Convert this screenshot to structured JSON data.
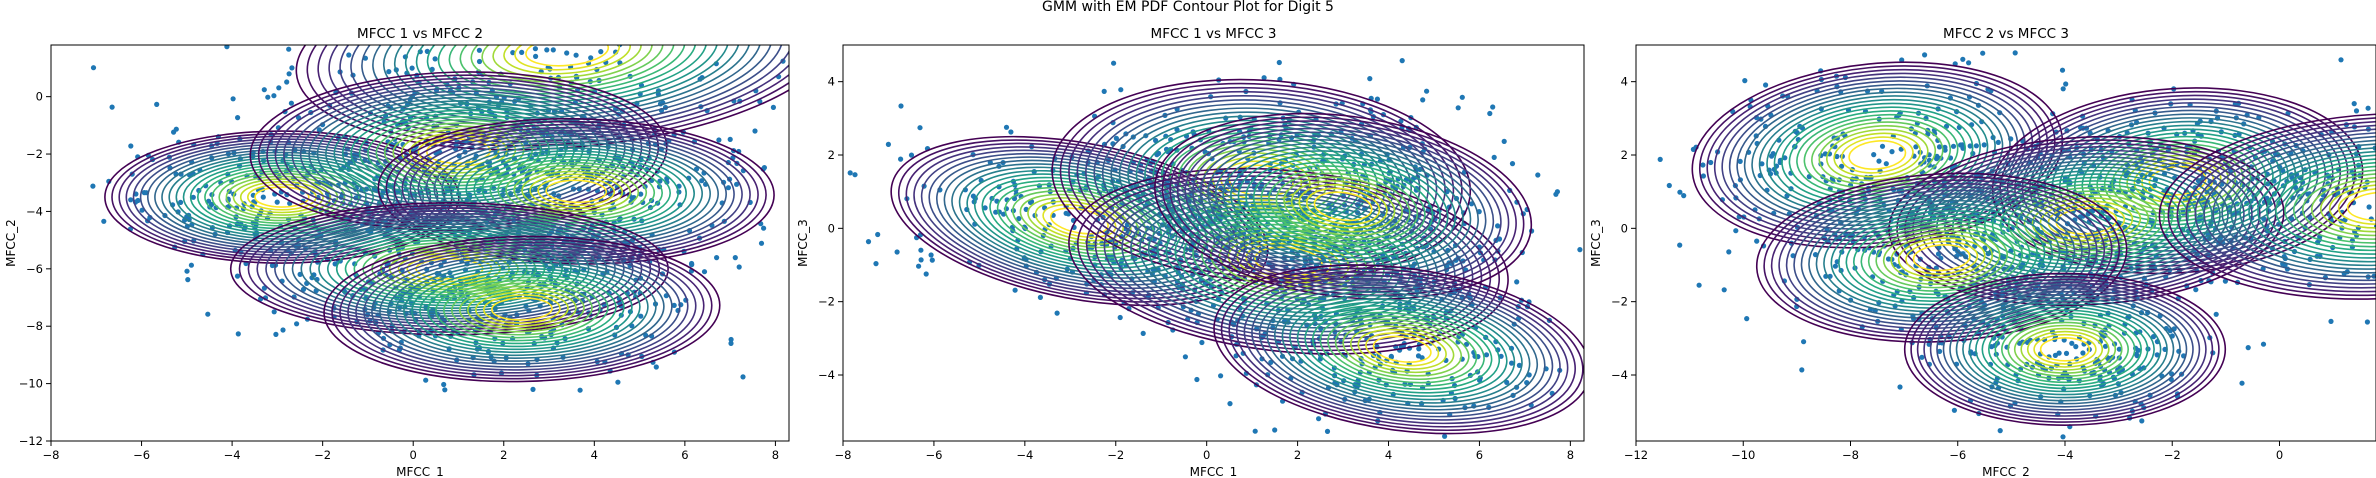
{
  "figure": {
    "suptitle": "GMM with EM PDF Contour Plot for Digit 5"
  },
  "chart_data": [
    {
      "type": "scatter",
      "title": "MFCC 1 vs MFCC 2",
      "xlabel": "MFCC_1",
      "ylabel": "MFCC_2",
      "xlim": [
        -8,
        8.3
      ],
      "ylim": [
        -12,
        1.8
      ],
      "xticks": [
        -8,
        -6,
        -4,
        -2,
        0,
        2,
        4,
        6,
        8
      ],
      "yticks": [
        -12,
        -10,
        -8,
        -6,
        -4,
        -2,
        0
      ],
      "grid": false,
      "scatter_color": "#1f77b4",
      "contour_colormap": "viridis",
      "components": [
        {
          "mx": 3.4,
          "my": 1.6,
          "sx": 2.6,
          "sy": 1.5,
          "rho": 0.2
        },
        {
          "mx": -2.9,
          "my": -3.5,
          "sx": 1.7,
          "sy": 1.0,
          "rho": 0.0
        },
        {
          "mx": 1.0,
          "my": -1.9,
          "sx": 2.0,
          "sy": 1.2,
          "rho": 0.05
        },
        {
          "mx": 3.6,
          "my": -3.3,
          "sx": 1.9,
          "sy": 1.1,
          "rho": -0.05
        },
        {
          "mx": 0.8,
          "my": -6.0,
          "sx": 2.1,
          "sy": 1.0,
          "rho": 0.0
        },
        {
          "mx": 2.4,
          "my": -7.4,
          "sx": 1.9,
          "sy": 1.1,
          "rho": 0.05
        }
      ]
    },
    {
      "type": "scatter",
      "title": "MFCC 1 vs MFCC 3",
      "xlabel": "MFCC_1",
      "ylabel": "MFCC_3",
      "xlim": [
        -8,
        8.3
      ],
      "ylim": [
        -5.8,
        5
      ],
      "xticks": [
        -8,
        -6,
        -4,
        -2,
        0,
        2,
        4,
        6,
        8
      ],
      "yticks": [
        -4,
        -2,
        0,
        2,
        4
      ],
      "grid": false,
      "scatter_color": "#1f77b4",
      "contour_colormap": "viridis",
      "components": [
        {
          "mx": -2.8,
          "my": 0.2,
          "sx": 1.8,
          "sy": 1.0,
          "rho": -0.35
        },
        {
          "mx": 1.2,
          "my": 1.3,
          "sx": 2.0,
          "sy": 1.2,
          "rho": -0.1
        },
        {
          "mx": 1.8,
          "my": -0.9,
          "sx": 2.1,
          "sy": 1.1,
          "rho": -0.2
        },
        {
          "mx": 3.0,
          "my": 0.6,
          "sx": 1.8,
          "sy": 1.1,
          "rho": -0.2
        },
        {
          "mx": 4.3,
          "my": -3.3,
          "sx": 1.8,
          "sy": 1.0,
          "rho": -0.25
        }
      ]
    },
    {
      "type": "scatter",
      "title": "MFCC 2 vs MFCC 3",
      "xlabel": "MFCC_2",
      "ylabel": "MFCC_3",
      "xlim": [
        -12,
        1.8
      ],
      "ylim": [
        -5.8,
        5
      ],
      "xticks": [
        -12,
        -10,
        -8,
        -6,
        -4,
        -2,
        0
      ],
      "yticks": [
        -4,
        -2,
        0,
        2,
        4
      ],
      "grid": false,
      "scatter_color": "#1f77b4",
      "contour_colormap": "viridis",
      "components": [
        {
          "mx": -7.5,
          "my": 2.0,
          "sx": 1.5,
          "sy": 1.1,
          "rho": 0.15
        },
        {
          "mx": -1.9,
          "my": 1.3,
          "sx": 1.5,
          "sy": 1.1,
          "rho": 0.1
        },
        {
          "mx": -3.6,
          "my": 0.2,
          "sx": 1.6,
          "sy": 1.0,
          "rho": 0.1
        },
        {
          "mx": -6.3,
          "my": -0.8,
          "sx": 1.5,
          "sy": 1.0,
          "rho": 0.1
        },
        {
          "mx": -4.0,
          "my": -3.3,
          "sx": 1.3,
          "sy": 0.9,
          "rho": 0.0
        },
        {
          "mx": 1.9,
          "my": 0.6,
          "sx": 1.8,
          "sy": 1.1,
          "rho": 0.1
        }
      ]
    }
  ]
}
